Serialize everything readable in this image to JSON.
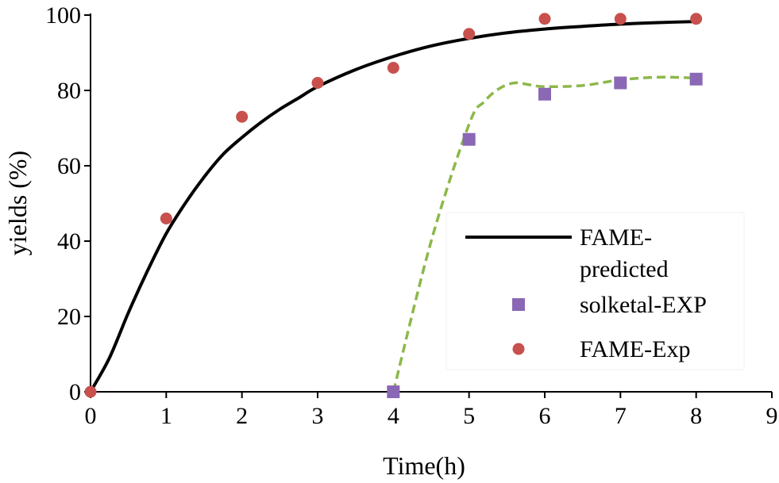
{
  "chart_data": {
    "type": "line",
    "xlabel": "Time(h)",
    "ylabel": "yields (%)",
    "xlim": [
      0,
      9
    ],
    "ylim": [
      0,
      100
    ],
    "xticks": [
      "0",
      "1",
      "2",
      "3",
      "4",
      "5",
      "6",
      "7",
      "8",
      "9"
    ],
    "yticks": [
      "0",
      "20",
      "40",
      "60",
      "80",
      "100"
    ],
    "grid": false,
    "legend_position": "bottom-right",
    "series": [
      {
        "name": "FAME-predicted",
        "kind": "line",
        "style": "solid",
        "color": "#000000",
        "x": [
          0,
          0.25,
          0.5,
          0.75,
          1,
          1.25,
          1.5,
          1.75,
          2,
          2.25,
          2.5,
          2.75,
          3,
          3.5,
          4,
          4.5,
          5,
          5.5,
          6,
          6.5,
          7,
          7.5,
          8
        ],
        "y": [
          0,
          9,
          21,
          32,
          42,
          50,
          57,
          63,
          67.5,
          71.5,
          75,
          78,
          81,
          85.5,
          89,
          91.8,
          93.8,
          95.3,
          96.3,
          97,
          97.6,
          98,
          98.3
        ]
      },
      {
        "name": "solketal-EXP",
        "kind": "scatter",
        "marker": "square",
        "color": "#8a68b5",
        "x": [
          4,
          5,
          6,
          7,
          8
        ],
        "y": [
          0,
          67,
          79,
          82,
          83
        ]
      },
      {
        "name": "FAME-Exp",
        "kind": "scatter",
        "marker": "circle",
        "color": "#c8504d",
        "x": [
          0,
          1,
          2,
          3,
          4,
          5,
          6,
          7,
          8
        ],
        "y": [
          0,
          46,
          73,
          82,
          86,
          95,
          99,
          99,
          99
        ]
      },
      {
        "kind": "line",
        "style": "dashed",
        "color": "#8cb84a",
        "x": [
          4,
          4.5,
          5,
          5.2,
          5.4,
          5.6,
          5.8,
          6,
          6.5,
          7,
          7.5,
          8
        ],
        "y": [
          0,
          40,
          71,
          77,
          80.5,
          82,
          81.5,
          81,
          81.3,
          82.8,
          83.5,
          83.3
        ]
      }
    ],
    "legend_entries": [
      {
        "label_lines": [
          "FAME-",
          "predicted"
        ],
        "series_index": 0
      },
      {
        "label_lines": [
          "solketal-EXP"
        ],
        "series_index": 1
      },
      {
        "label_lines": [
          "FAME-Exp"
        ],
        "series_index": 2
      }
    ]
  }
}
